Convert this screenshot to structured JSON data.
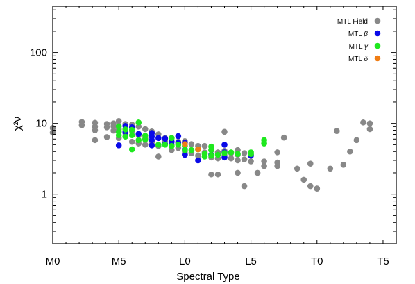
{
  "chart_data": {
    "type": "scatter",
    "title": "",
    "xlabel": "Spectral Type",
    "ylabel": "χ²ν",
    "xlim": [
      0,
      26
    ],
    "ylim": [
      0.2,
      450
    ],
    "y_scale": "log",
    "grid": false,
    "legend_position": "top-right",
    "x_ticks": [
      {
        "value": 0,
        "label": "M0"
      },
      {
        "value": 5,
        "label": "M5"
      },
      {
        "value": 10,
        "label": "L0"
      },
      {
        "value": 15,
        "label": "L5"
      },
      {
        "value": 20,
        "label": "T0"
      },
      {
        "value": 25,
        "label": "T5"
      }
    ],
    "y_ticks": [
      {
        "value": 1,
        "label": "1"
      },
      {
        "value": 10,
        "label": "10"
      },
      {
        "value": 100,
        "label": "100"
      }
    ],
    "series": [
      {
        "name": "MTL Field",
        "legend_prefix": "MTL",
        "legend_symbol": "Field",
        "color": "#888888",
        "points": [
          [
            0,
            8.6
          ],
          [
            0,
            7.4
          ],
          [
            2.2,
            10.5
          ],
          [
            2.2,
            9.4
          ],
          [
            3.2,
            10.2
          ],
          [
            3.2,
            9
          ],
          [
            3.2,
            8
          ],
          [
            3.2,
            5.8
          ],
          [
            4.1,
            9.8
          ],
          [
            4.1,
            8.8
          ],
          [
            4.1,
            6.4
          ],
          [
            4.6,
            10
          ],
          [
            4.6,
            9.1
          ],
          [
            4.6,
            7.9
          ],
          [
            5,
            10.8
          ],
          [
            5,
            8.2
          ],
          [
            5,
            6.2
          ],
          [
            5.5,
            9.8
          ],
          [
            5.5,
            7.3
          ],
          [
            6,
            9.6
          ],
          [
            6,
            7.8
          ],
          [
            6,
            5.5
          ],
          [
            6.5,
            9
          ],
          [
            6.5,
            6.8
          ],
          [
            6.5,
            5.2
          ],
          [
            7,
            8.3
          ],
          [
            7,
            6.1
          ],
          [
            7,
            5
          ],
          [
            7.5,
            7.7
          ],
          [
            7.5,
            5.4
          ],
          [
            8,
            7
          ],
          [
            8,
            4.8
          ],
          [
            8.5,
            6.2
          ],
          [
            8.5,
            5.6
          ],
          [
            9,
            6.2
          ],
          [
            9,
            5
          ],
          [
            9,
            4.2
          ],
          [
            9.5,
            5.5
          ],
          [
            9.5,
            4.5
          ],
          [
            10,
            5.6
          ],
          [
            10,
            4
          ],
          [
            10,
            3.6
          ],
          [
            10.5,
            5.1
          ],
          [
            10.5,
            3.8
          ],
          [
            11,
            4.8
          ],
          [
            11,
            3.5
          ],
          [
            11.5,
            4.8
          ],
          [
            11.5,
            3.9
          ],
          [
            12,
            4.2
          ],
          [
            12,
            3.3
          ],
          [
            12.5,
            3.9
          ],
          [
            12.5,
            3.2
          ],
          [
            13,
            4.1
          ],
          [
            13,
            3.5
          ],
          [
            13.5,
            3.8
          ],
          [
            13.5,
            3.2
          ],
          [
            14,
            3.6
          ],
          [
            14,
            3
          ],
          [
            14.5,
            3.8
          ],
          [
            14.5,
            3.1
          ],
          [
            15,
            3.6
          ],
          [
            15,
            2.9
          ],
          [
            16,
            2.9
          ],
          [
            16,
            2.5
          ],
          [
            15.5,
            2
          ],
          [
            14,
            2
          ],
          [
            12.5,
            1.9
          ],
          [
            12,
            1.9
          ],
          [
            13,
            7.6
          ],
          [
            14,
            4.2
          ],
          [
            17,
            3.9
          ],
          [
            17,
            2.8
          ],
          [
            17,
            2.5
          ],
          [
            17.5,
            6.3
          ],
          [
            14.5,
            1.3
          ],
          [
            18.5,
            2.3
          ],
          [
            19,
            1.6
          ],
          [
            19.5,
            2.7
          ],
          [
            19.5,
            1.3
          ],
          [
            20,
            1.2
          ],
          [
            20,
            1.2
          ],
          [
            21,
            2.3
          ],
          [
            21.5,
            7.8
          ],
          [
            22,
            2.6
          ],
          [
            22.5,
            4
          ],
          [
            23,
            5.8
          ],
          [
            23.5,
            10.3
          ],
          [
            24,
            10
          ],
          [
            24,
            8.3
          ],
          [
            8,
            3.4
          ]
        ]
      },
      {
        "name": "MTL β",
        "legend_prefix": "MTL",
        "legend_symbol": "β",
        "color": "#0a0ae8",
        "points": [
          [
            5,
            4.9
          ],
          [
            5.5,
            9.2
          ],
          [
            5.5,
            7.5
          ],
          [
            6,
            8.8
          ],
          [
            6.5,
            7.1
          ],
          [
            7.5,
            7.3
          ],
          [
            7.5,
            6.5
          ],
          [
            7.5,
            5.8
          ],
          [
            7.5,
            4.9
          ],
          [
            8,
            6.2
          ],
          [
            8.5,
            6.1
          ],
          [
            8.5,
            5.1
          ],
          [
            9,
            5.5
          ],
          [
            9.5,
            6.6
          ],
          [
            9.5,
            5.3
          ],
          [
            10,
            5.3
          ],
          [
            10,
            4.3
          ],
          [
            10,
            3.6
          ],
          [
            11,
            3
          ],
          [
            12,
            3.6
          ],
          [
            13,
            3.3
          ],
          [
            13,
            5
          ],
          [
            13,
            3.9
          ],
          [
            15,
            3.5
          ]
        ]
      },
      {
        "name": "MTL γ",
        "legend_prefix": "MTL",
        "legend_symbol": "γ",
        "color": "#1ee81e",
        "points": [
          [
            5,
            9.1
          ],
          [
            5,
            7.6
          ],
          [
            5,
            6.8
          ],
          [
            5.5,
            8.2
          ],
          [
            5.5,
            6.5
          ],
          [
            6,
            8.1
          ],
          [
            6,
            6.8
          ],
          [
            6,
            4.3
          ],
          [
            6.5,
            10.3
          ],
          [
            6.5,
            5.8
          ],
          [
            7,
            6.7
          ],
          [
            7,
            5.9
          ],
          [
            8,
            5
          ],
          [
            8.5,
            5
          ],
          [
            9,
            6.2
          ],
          [
            9,
            4.8
          ],
          [
            9.5,
            5
          ],
          [
            10,
            4.8
          ],
          [
            10,
            4.2
          ],
          [
            10.5,
            4.2
          ],
          [
            11,
            4.3
          ],
          [
            11.5,
            3.7
          ],
          [
            11.5,
            3.4
          ],
          [
            12,
            4.7
          ],
          [
            12,
            4.2
          ],
          [
            12,
            3.5
          ],
          [
            12.5,
            3.6
          ],
          [
            13,
            3.8
          ],
          [
            13.5,
            3.9
          ],
          [
            14,
            3.7
          ],
          [
            15,
            3.9
          ],
          [
            15,
            3.7
          ],
          [
            16,
            5.8
          ],
          [
            16,
            5.2
          ]
        ]
      },
      {
        "name": "MTL δ",
        "legend_prefix": "MTL",
        "legend_symbol": "δ",
        "color": "#f07d14",
        "points": [
          [
            10,
            5.1
          ],
          [
            11,
            4.3
          ]
        ]
      }
    ]
  }
}
